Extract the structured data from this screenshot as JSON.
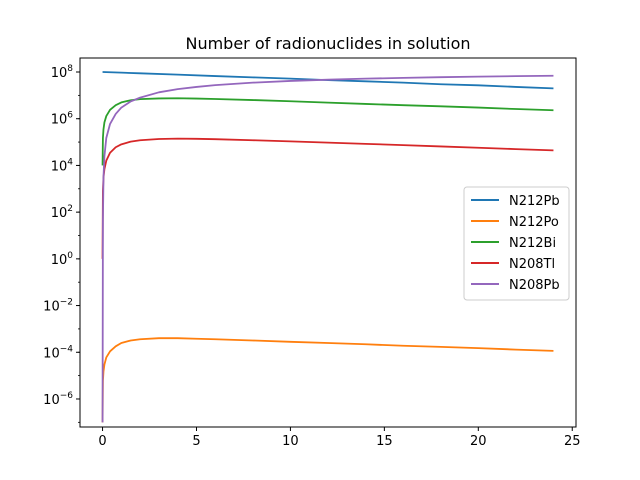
{
  "chart_data": {
    "type": "line",
    "title": "Number of radionuclides in solution",
    "xlabel": "",
    "ylabel": "",
    "xlim": [
      -1.2,
      25.2
    ],
    "ylim_log10": [
      -7.2,
      8.6
    ],
    "yscale": "log",
    "x_ticks": [
      0,
      5,
      10,
      15,
      20,
      25
    ],
    "y_tick_exponents": [
      -6,
      -4,
      -2,
      0,
      2,
      4,
      6,
      8
    ],
    "grid": false,
    "legend_position": "center-right",
    "series": [
      {
        "name": "N212Pb",
        "color": "#1f77b4",
        "points": [
          [
            0,
            100000000.0
          ],
          [
            1,
            94000000.0
          ],
          [
            2,
            88000000.0
          ],
          [
            4,
            77000000.0
          ],
          [
            6,
            67000000.0
          ],
          [
            8,
            59000000.0
          ],
          [
            10,
            52000000.0
          ],
          [
            12,
            45000000.0
          ],
          [
            14,
            40000000.0
          ],
          [
            16,
            35000000.0
          ],
          [
            18,
            30000000.0
          ],
          [
            20,
            27000000.0
          ],
          [
            22,
            23000000.0
          ],
          [
            24,
            20000000.0
          ]
        ]
      },
      {
        "name": "N212Po",
        "color": "#ff7f0e",
        "points": [
          [
            0,
            1e-07
          ],
          [
            0.02,
            6e-06
          ],
          [
            0.05,
            1.5e-05
          ],
          [
            0.1,
            3e-05
          ],
          [
            0.2,
            6e-05
          ],
          [
            0.4,
            0.00011
          ],
          [
            0.7,
            0.00018
          ],
          [
            1,
            0.00025
          ],
          [
            1.5,
            0.00032
          ],
          [
            2,
            0.00036
          ],
          [
            3,
            0.0004
          ],
          [
            4,
            0.0004
          ],
          [
            5,
            0.00038
          ],
          [
            6,
            0.00036
          ],
          [
            8,
            0.00032
          ],
          [
            10,
            0.00028
          ],
          [
            12,
            0.00025
          ],
          [
            14,
            0.00022
          ],
          [
            16,
            0.00019
          ],
          [
            18,
            0.00017
          ],
          [
            20,
            0.00015
          ],
          [
            22,
            0.00013
          ],
          [
            24,
            0.000115
          ]
        ]
      },
      {
        "name": "N212Bi",
        "color": "#2ca02c",
        "points": [
          [
            0,
            10000.0
          ],
          [
            0.02,
            150000.0
          ],
          [
            0.05,
            350000.0
          ],
          [
            0.1,
            700000.0
          ],
          [
            0.2,
            1300000.0
          ],
          [
            0.4,
            2400000.0
          ],
          [
            0.7,
            3800000.0
          ],
          [
            1,
            5000000.0
          ],
          [
            1.5,
            6200000.0
          ],
          [
            2,
            6900000.0
          ],
          [
            3,
            7400000.0
          ],
          [
            4,
            7500000.0
          ],
          [
            5,
            7300000.0
          ],
          [
            6,
            7000000.0
          ],
          [
            8,
            6300000.0
          ],
          [
            10,
            5600000.0
          ],
          [
            12,
            4900000.0
          ],
          [
            14,
            4300000.0
          ],
          [
            16,
            3800000.0
          ],
          [
            18,
            3400000.0
          ],
          [
            20,
            3000000.0
          ],
          [
            22,
            2600000.0
          ],
          [
            24,
            2300000.0
          ]
        ]
      },
      {
        "name": "N208Tl",
        "color": "#d62728",
        "points": [
          [
            0,
            1.0
          ],
          [
            0.02,
            800.0
          ],
          [
            0.05,
            3000.0
          ],
          [
            0.1,
            7000.0
          ],
          [
            0.2,
            16000.0
          ],
          [
            0.4,
            35000.0
          ],
          [
            0.7,
            60000.0
          ],
          [
            1,
            80000.0
          ],
          [
            1.5,
            105000.0
          ],
          [
            2,
            120000.0
          ],
          [
            3,
            135000.0
          ],
          [
            4,
            140000.0
          ],
          [
            5,
            138000.0
          ],
          [
            6,
            133000.0
          ],
          [
            8,
            120000.0
          ],
          [
            10,
            107000.0
          ],
          [
            12,
            95000.0
          ],
          [
            14,
            84000.0
          ],
          [
            16,
            74000.0
          ],
          [
            18,
            65000.0
          ],
          [
            20,
            57000.0
          ],
          [
            22,
            50000.0
          ],
          [
            24,
            44000.0
          ]
        ]
      },
      {
        "name": "N208Pb",
        "color": "#9467bd",
        "points": [
          [
            0,
            1e-07
          ],
          [
            0.02,
            50
          ],
          [
            0.05,
            3000.0
          ],
          [
            0.1,
            25000.0
          ],
          [
            0.2,
            150000.0
          ],
          [
            0.4,
            600000.0
          ],
          [
            0.7,
            1600000.0
          ],
          [
            1,
            3000000.0
          ],
          [
            1.5,
            5500000.0
          ],
          [
            2,
            8000000.0
          ],
          [
            3,
            13500000.0
          ],
          [
            4,
            18500000.0
          ],
          [
            5,
            23000000.0
          ],
          [
            6,
            27500000.0
          ],
          [
            8,
            35000000.0
          ],
          [
            10,
            41500000.0
          ],
          [
            12,
            47000000.0
          ],
          [
            14,
            52000000.0
          ],
          [
            16,
            56000000.0
          ],
          [
            18,
            60000000.0
          ],
          [
            20,
            63500000.0
          ],
          [
            22,
            66500000.0
          ],
          [
            24,
            69000000.0
          ]
        ]
      }
    ]
  }
}
